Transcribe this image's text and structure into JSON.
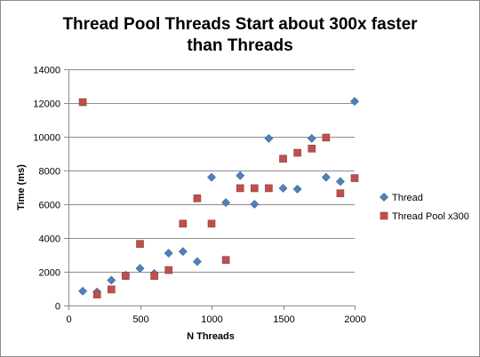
{
  "chart_data": {
    "type": "scatter",
    "title_lines": [
      "Thread Pool Threads Start about 300x faster",
      "than Threads"
    ],
    "xlabel": "N Threads",
    "ylabel": "Time (ms)",
    "xlim": [
      0,
      2000
    ],
    "ylim": [
      0,
      14000
    ],
    "xticks": [
      0,
      500,
      1000,
      1500,
      2000
    ],
    "yticks": [
      0,
      2000,
      4000,
      6000,
      8000,
      10000,
      12000,
      14000
    ],
    "grid": "horizontal",
    "legend_position": "right",
    "series": [
      {
        "name": "Thread",
        "marker": "diamond",
        "color": "#4f81bd",
        "points": [
          [
            100,
            850
          ],
          [
            200,
            800
          ],
          [
            300,
            1500
          ],
          [
            400,
            1800
          ],
          [
            500,
            2200
          ],
          [
            600,
            1900
          ],
          [
            700,
            3100
          ],
          [
            800,
            3200
          ],
          [
            900,
            2600
          ],
          [
            1000,
            7600
          ],
          [
            1100,
            6100
          ],
          [
            1200,
            7700
          ],
          [
            1300,
            6000
          ],
          [
            1400,
            9900
          ],
          [
            1500,
            6950
          ],
          [
            1600,
            6900
          ],
          [
            1700,
            9900
          ],
          [
            1800,
            7600
          ],
          [
            1900,
            7350
          ],
          [
            2000,
            12100
          ]
        ]
      },
      {
        "name": "Thread Pool x300",
        "marker": "square",
        "color": "#c0504d",
        "points": [
          [
            100,
            12050
          ],
          [
            200,
            650
          ],
          [
            300,
            950
          ],
          [
            400,
            1750
          ],
          [
            500,
            3650
          ],
          [
            600,
            1750
          ],
          [
            700,
            2100
          ],
          [
            800,
            4850
          ],
          [
            900,
            6350
          ],
          [
            1000,
            4850
          ],
          [
            1100,
            2700
          ],
          [
            1200,
            6950
          ],
          [
            1300,
            6950
          ],
          [
            1400,
            6950
          ],
          [
            1500,
            8700
          ],
          [
            1600,
            9050
          ],
          [
            1700,
            9300
          ],
          [
            1800,
            9950
          ],
          [
            1900,
            6650
          ],
          [
            2000,
            7550
          ]
        ]
      }
    ]
  }
}
